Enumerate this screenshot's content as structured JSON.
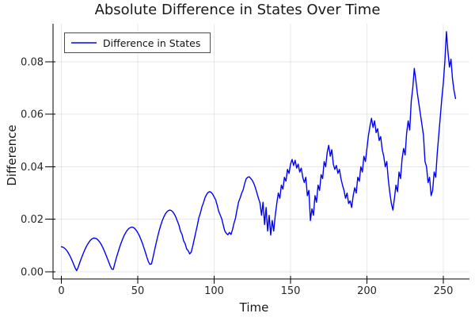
{
  "title": "Absolute Difference in States Over Time",
  "axes": {
    "xlabel": "Time",
    "ylabel": "Difference"
  },
  "legend": {
    "label": "Difference in States"
  },
  "colors": {
    "series": "#0000FF",
    "grid": "rgba(0,0,0,0.09)",
    "axis": "#000000",
    "tick_label": "#262626",
    "text": "#191919",
    "legend_border": "#4d4d4d",
    "background": "#ffffff"
  },
  "chart_data": {
    "type": "line",
    "title": "Absolute Difference in States Over Time",
    "xlabel": "Time",
    "ylabel": "Difference",
    "xlim": [
      -5.44,
      267.1
    ],
    "ylim": [
      -0.00275,
      0.0945
    ],
    "x_ticks": [
      0,
      50,
      100,
      150,
      200,
      250
    ],
    "x_tick_labels": [
      "0",
      "50",
      "100",
      "150",
      "200",
      "250"
    ],
    "y_ticks": [
      0.0,
      0.02,
      0.04,
      0.06,
      0.08
    ],
    "y_tick_labels": [
      "0.00",
      "0.02",
      "0.04",
      "0.06",
      "0.08"
    ],
    "grid": true,
    "legend_position": "top-left",
    "series": [
      {
        "name": "Difference in States",
        "color": "#0000FF",
        "t_start": 0,
        "t_step": 1,
        "values": [
          0.0095,
          0.0094,
          0.009,
          0.0085,
          0.0077,
          0.0067,
          0.0056,
          0.0043,
          0.0029,
          0.0015,
          0.0004,
          0.0017,
          0.0034,
          0.005,
          0.0065,
          0.0079,
          0.0092,
          0.0103,
          0.0112,
          0.012,
          0.0125,
          0.0128,
          0.0128,
          0.0126,
          0.0121,
          0.0114,
          0.0105,
          0.0094,
          0.0081,
          0.0067,
          0.0052,
          0.0037,
          0.0022,
          0.001,
          0.0009,
          0.0032,
          0.0053,
          0.0072,
          0.0091,
          0.0108,
          0.0123,
          0.0137,
          0.0148,
          0.0157,
          0.0164,
          0.0168,
          0.017,
          0.0169,
          0.0165,
          0.0158,
          0.0149,
          0.0138,
          0.0124,
          0.0109,
          0.0092,
          0.0074,
          0.0055,
          0.0038,
          0.0028,
          0.003,
          0.0055,
          0.0082,
          0.0108,
          0.0133,
          0.0156,
          0.0176,
          0.0194,
          0.0208,
          0.022,
          0.0228,
          0.0233,
          0.0235,
          0.0233,
          0.0228,
          0.0219,
          0.0207,
          0.0192,
          0.0177,
          0.0154,
          0.0142,
          0.0118,
          0.0107,
          0.0087,
          0.008,
          0.0068,
          0.0075,
          0.0098,
          0.0124,
          0.0151,
          0.0177,
          0.0206,
          0.0224,
          0.0247,
          0.0263,
          0.0282,
          0.0294,
          0.0302,
          0.0305,
          0.0303,
          0.0296,
          0.0285,
          0.0274,
          0.0253,
          0.023,
          0.0216,
          0.0201,
          0.0177,
          0.0155,
          0.0146,
          0.0141,
          0.015,
          0.0142,
          0.016,
          0.0185,
          0.0205,
          0.0237,
          0.0266,
          0.0281,
          0.0299,
          0.0313,
          0.0336,
          0.0355,
          0.036,
          0.0362,
          0.0355,
          0.0348,
          0.0336,
          0.032,
          0.03,
          0.028,
          0.0262,
          0.0215,
          0.0265,
          0.018,
          0.0245,
          0.0155,
          0.0215,
          0.014,
          0.0195,
          0.0155,
          0.0215,
          0.026,
          0.03,
          0.028,
          0.033,
          0.0315,
          0.036,
          0.0345,
          0.039,
          0.0375,
          0.041,
          0.0428,
          0.0405,
          0.0425,
          0.0395,
          0.041,
          0.038,
          0.0395,
          0.036,
          0.034,
          0.036,
          0.029,
          0.031,
          0.0195,
          0.024,
          0.0215,
          0.029,
          0.0265,
          0.033,
          0.031,
          0.037,
          0.0355,
          0.042,
          0.04,
          0.0455,
          0.0482,
          0.044,
          0.0465,
          0.041,
          0.039,
          0.0405,
          0.0375,
          0.039,
          0.0355,
          0.033,
          0.031,
          0.028,
          0.03,
          0.026,
          0.027,
          0.0245,
          0.029,
          0.032,
          0.03,
          0.036,
          0.0345,
          0.04,
          0.038,
          0.044,
          0.042,
          0.047,
          0.052,
          0.0555,
          0.0585,
          0.055,
          0.0575,
          0.053,
          0.0545,
          0.05,
          0.0515,
          0.0465,
          0.044,
          0.04,
          0.042,
          0.035,
          0.03,
          0.026,
          0.0235,
          0.028,
          0.033,
          0.0305,
          0.038,
          0.0355,
          0.043,
          0.047,
          0.0445,
          0.053,
          0.0575,
          0.054,
          0.065,
          0.07,
          0.0775,
          0.073,
          0.068,
          0.064,
          0.06,
          0.056,
          0.052,
          0.042,
          0.04,
          0.034,
          0.036,
          0.029,
          0.031,
          0.038,
          0.036,
          0.045,
          0.052,
          0.059,
          0.066,
          0.072,
          0.08,
          0.0915,
          0.084,
          0.078,
          0.081,
          0.0735,
          0.069,
          0.066
        ]
      }
    ]
  }
}
